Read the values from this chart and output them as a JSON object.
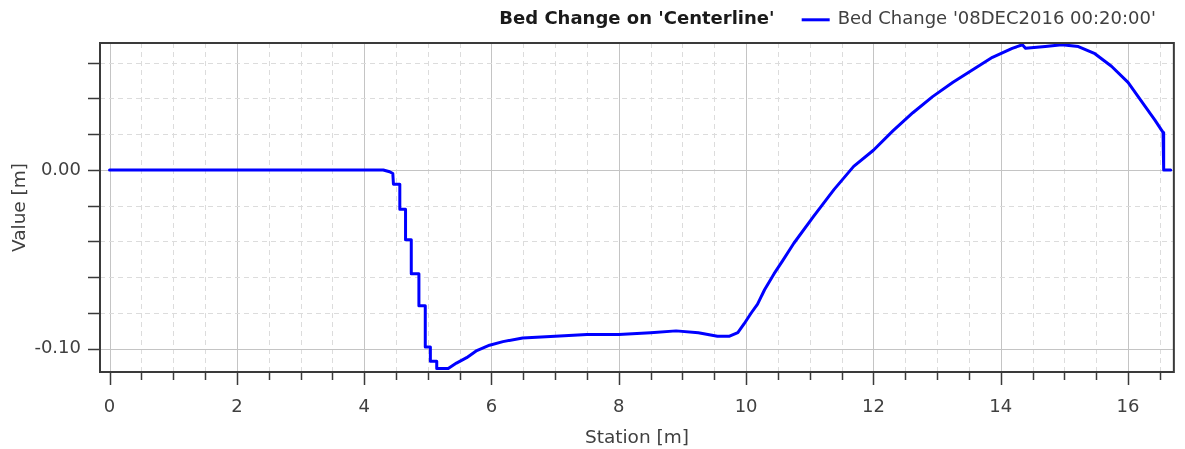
{
  "chart_data": {
    "type": "line",
    "title": "Bed Change on 'Centerline'",
    "xlabel": "Station [m]",
    "ylabel": "Value [m]",
    "x": [
      0,
      4.3,
      4.4,
      4.45,
      4.46,
      4.56,
      4.56,
      4.65,
      4.65,
      4.74,
      4.74,
      4.86,
      4.86,
      4.96,
      4.96,
      5.04,
      5.04,
      5.14,
      5.14,
      5.32,
      5.45,
      5.61,
      5.77,
      5.97,
      6.18,
      6.49,
      7.0,
      7.5,
      8.0,
      8.5,
      8.9,
      9.25,
      9.55,
      9.74,
      9.87,
      9.97,
      10.08,
      10.18,
      10.29,
      10.44,
      10.57,
      10.75,
      11.06,
      11.38,
      11.69,
      12.0,
      12.31,
      12.62,
      12.93,
      13.25,
      13.56,
      13.87,
      14.18,
      14.34,
      14.39,
      14.7,
      14.96,
      15.22,
      15.48,
      15.74,
      16.0,
      16.26,
      16.42,
      16.55,
      16.56,
      16.67
    ],
    "series": [
      {
        "name": "Bed Change '08DEC2016 00:20:00'",
        "color": "#0000ff",
        "values": [
          0,
          0,
          -0.001,
          -0.002,
          -0.008,
          -0.008,
          -0.022,
          -0.022,
          -0.039,
          -0.039,
          -0.058,
          -0.058,
          -0.076,
          -0.076,
          -0.099,
          -0.099,
          -0.107,
          -0.107,
          -0.111,
          -0.111,
          -0.108,
          -0.105,
          -0.101,
          -0.098,
          -0.096,
          -0.094,
          -0.093,
          -0.092,
          -0.092,
          -0.091,
          -0.09,
          -0.091,
          -0.093,
          -0.093,
          -0.091,
          -0.086,
          -0.08,
          -0.075,
          -0.067,
          -0.058,
          -0.051,
          -0.041,
          -0.026,
          -0.011,
          0.002,
          0.011,
          0.022,
          0.032,
          0.041,
          0.049,
          0.056,
          0.063,
          0.068,
          0.07,
          0.068,
          0.069,
          0.07,
          0.069,
          0.065,
          0.058,
          0.049,
          0.036,
          0.028,
          0.021,
          0,
          0
        ]
      }
    ],
    "xlim": [
      -0.15,
      16.72
    ],
    "ylim": [
      -0.113,
      0.071
    ],
    "xticks": [
      0,
      {
        "value": 0.5,
        "label": null
      },
      {
        "value": 1,
        "label": null
      },
      {
        "value": 1.5,
        "label": null
      },
      2,
      {
        "value": 2.5,
        "label": null
      },
      {
        "value": 3,
        "label": null
      },
      {
        "value": 3.5,
        "label": null
      },
      4,
      {
        "value": 4.5,
        "label": null
      },
      {
        "value": 5,
        "label": null
      },
      {
        "value": 5.5,
        "label": null
      },
      6,
      {
        "value": 6.5,
        "label": null
      },
      {
        "value": 7,
        "label": null
      },
      {
        "value": 7.5,
        "label": null
      },
      8,
      {
        "value": 8.5,
        "label": null
      },
      {
        "value": 9,
        "label": null
      },
      {
        "value": 9.5,
        "label": null
      },
      10,
      {
        "value": 10.5,
        "label": null
      },
      {
        "value": 11,
        "label": null
      },
      {
        "value": 11.5,
        "label": null
      },
      12,
      {
        "value": 12.5,
        "label": null
      },
      {
        "value": 13,
        "label": null
      },
      {
        "value": 13.5,
        "label": null
      },
      14,
      {
        "value": 14.5,
        "label": null
      },
      {
        "value": 15,
        "label": null
      },
      {
        "value": 15.5,
        "label": null
      },
      16,
      {
        "value": 16.5,
        "label": null
      }
    ],
    "yticks": [
      {
        "value": -0.1,
        "label": "-0.10"
      },
      {
        "value": -0.08,
        "label": null
      },
      {
        "value": -0.06,
        "label": null
      },
      {
        "value": -0.04,
        "label": null
      },
      {
        "value": -0.02,
        "label": null
      },
      {
        "value": 0,
        "label": "0.00"
      },
      {
        "value": 0.02,
        "label": null
      },
      {
        "value": 0.04,
        "label": null
      },
      {
        "value": 0.06,
        "label": null
      }
    ],
    "grid": true,
    "legend": "top right",
    "marker": "none",
    "line_style": "solid"
  }
}
